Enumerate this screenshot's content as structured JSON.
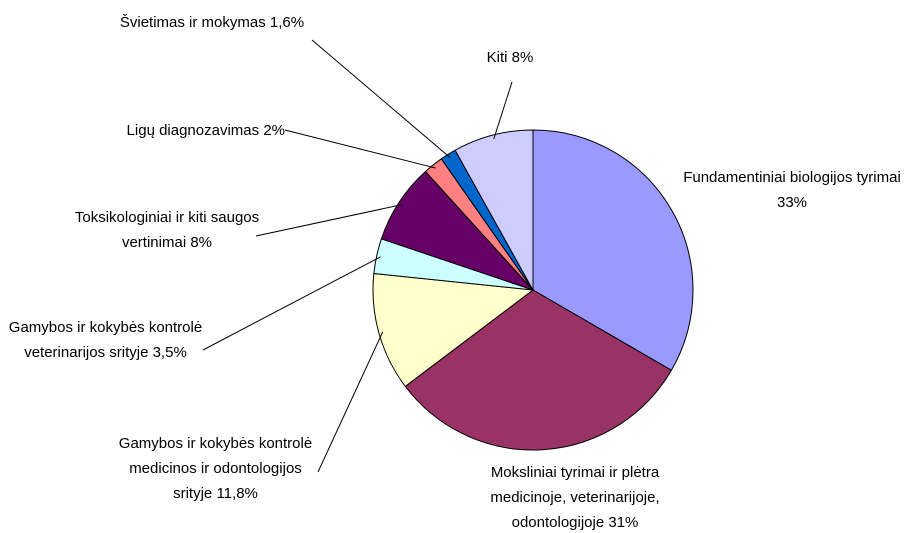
{
  "chart_data": {
    "type": "pie",
    "categories": [
      "Fundamentiniai biologijos tyrimai",
      "Moksliniai tyrimai ir plėtra medicinoje, veterinarijoje, odontologijoje",
      "Gamybos ir kokybės kontrolė medicinos ir odontologijos srityje",
      "Gamybos ir kokybės kontrolė veterinarijos srityje",
      "Toksikologiniai ir kiti saugos vertinimai",
      "Ligų diagnozavimas",
      "Švietimas ir mokymas",
      "Kiti"
    ],
    "values": [
      33,
      31,
      11.8,
      3.5,
      8,
      2,
      1.6,
      8
    ],
    "value_labels": [
      "33%",
      "31%",
      "11,8%",
      "3,5%",
      "8%",
      "2%",
      "1,6%",
      "8%"
    ],
    "colors": [
      "#9999ff",
      "#993366",
      "#ffffcc",
      "#ccffff",
      "#660066",
      "#ff8080",
      "#0066cc",
      "#ccccff"
    ]
  }
}
